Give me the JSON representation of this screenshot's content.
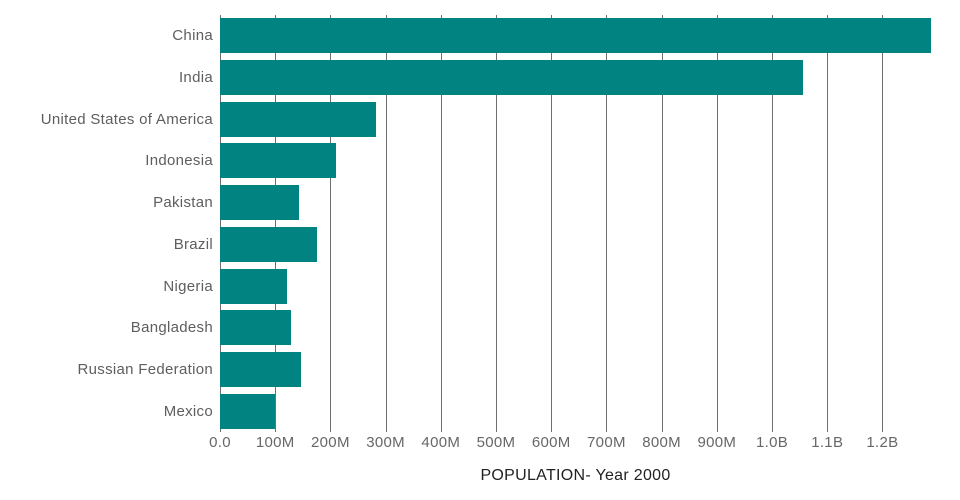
{
  "chart_data": {
    "type": "bar",
    "orientation": "horizontal",
    "title": "POPULATION- Year 2000",
    "categories": [
      "China",
      "India",
      "United States of America",
      "Indonesia",
      "Pakistan",
      "Brazil",
      "Nigeria",
      "Bangladesh",
      "Russian Federation",
      "Mexico"
    ],
    "series": [
      {
        "name": "Population (Year 2000)",
        "values_millions": [
          1288,
          1056,
          282,
          211,
          143,
          175,
          122,
          129,
          147,
          100
        ]
      }
    ],
    "x_ticks": [
      {
        "label": "0.0",
        "value_millions": 0
      },
      {
        "label": "100M",
        "value_millions": 100
      },
      {
        "label": "200M",
        "value_millions": 200
      },
      {
        "label": "300M",
        "value_millions": 300
      },
      {
        "label": "400M",
        "value_millions": 400
      },
      {
        "label": "500M",
        "value_millions": 500
      },
      {
        "label": "600M",
        "value_millions": 600
      },
      {
        "label": "700M",
        "value_millions": 700
      },
      {
        "label": "800M",
        "value_millions": 800
      },
      {
        "label": "900M",
        "value_millions": 900
      },
      {
        "label": "1.0B",
        "value_millions": 1000
      },
      {
        "label": "1.1B",
        "value_millions": 1100
      },
      {
        "label": "1.2B",
        "value_millions": 1200
      }
    ],
    "xlim_millions": [
      0,
      1288
    ],
    "grid": true,
    "legend_position": "none",
    "colors": {
      "bar": "#008381",
      "gridline": "#6e6e6e",
      "category_label": "#5e5e5e",
      "tick_label": "#676767",
      "title": "#222222",
      "background": "#ffffff"
    }
  }
}
